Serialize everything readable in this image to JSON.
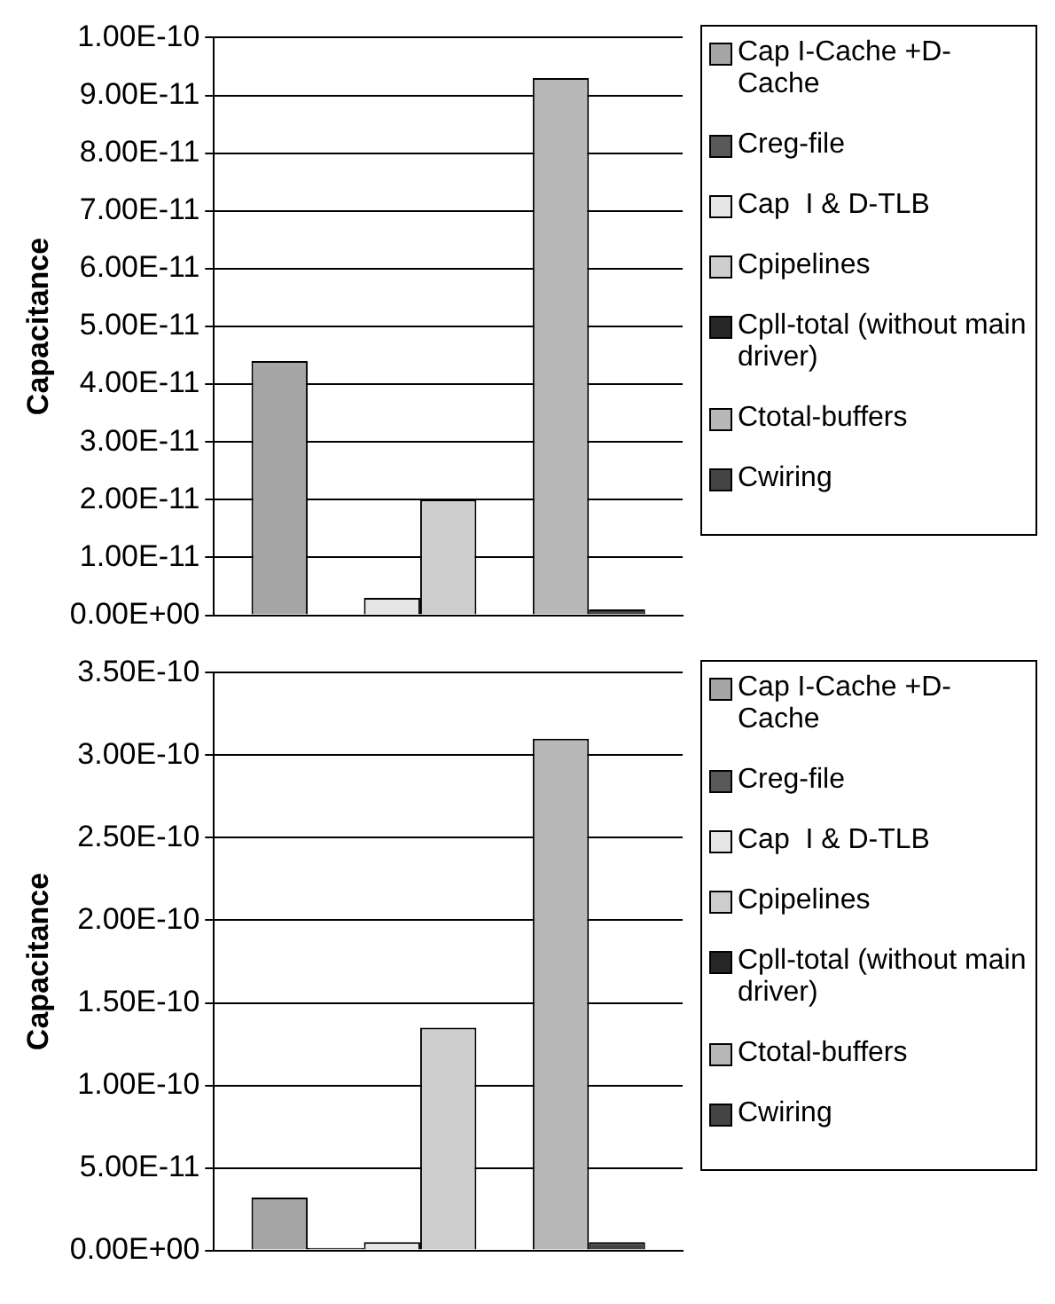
{
  "chart_data": [
    {
      "type": "bar",
      "ylabel": "Capacitance",
      "categories": [
        null
      ],
      "ylim": [
        0,
        1e-10
      ],
      "yticks": [
        {
          "value": 0,
          "label": "0.00E+00"
        },
        {
          "value": 1e-11,
          "label": "1.00E-11"
        },
        {
          "value": 2e-11,
          "label": "2.00E-11"
        },
        {
          "value": 3e-11,
          "label": "3.00E-11"
        },
        {
          "value": 4e-11,
          "label": "4.00E-11"
        },
        {
          "value": 5e-11,
          "label": "5.00E-11"
        },
        {
          "value": 6e-11,
          "label": "6.00E-11"
        },
        {
          "value": 7e-11,
          "label": "7.00E-11"
        },
        {
          "value": 8e-11,
          "label": "8.00E-11"
        },
        {
          "value": 9e-11,
          "label": "9.00E-11"
        },
        {
          "value": 1e-10,
          "label": "1.00E-10"
        }
      ],
      "grid": "y",
      "legend": "right",
      "series": [
        {
          "name": "Cap I-Cache +D-Cache",
          "color": "#a6a6a6",
          "values": [
            4.4e-11
          ]
        },
        {
          "name": "Creg-file",
          "color": "#595959",
          "values": [
            null
          ]
        },
        {
          "name": "Cap  I & D-TLB",
          "color": "#e6e6e6",
          "values": [
            3e-12
          ]
        },
        {
          "name": "Cpipelines",
          "color": "#cecece",
          "values": [
            2e-11
          ]
        },
        {
          "name": "Cpll-total (without main driver)",
          "color": "#262626",
          "values": [
            null
          ]
        },
        {
          "name": "Ctotal-buffers",
          "color": "#b8b8b8",
          "values": [
            9.3e-11
          ]
        },
        {
          "name": "Cwiring",
          "color": "#444444",
          "values": [
            1e-12
          ]
        }
      ]
    },
    {
      "type": "bar",
      "ylabel": "Capacitance",
      "categories": [
        null
      ],
      "ylim": [
        0,
        3.5e-10
      ],
      "yticks": [
        {
          "value": 0,
          "label": "0.00E+00"
        },
        {
          "value": 5e-11,
          "label": "5.00E-11"
        },
        {
          "value": 1e-10,
          "label": "1.00E-10"
        },
        {
          "value": 1.5e-10,
          "label": "1.50E-10"
        },
        {
          "value": 2e-10,
          "label": "2.00E-10"
        },
        {
          "value": 2.5e-10,
          "label": "2.50E-10"
        },
        {
          "value": 3e-10,
          "label": "3.00E-10"
        },
        {
          "value": 3.5e-10,
          "label": "3.50E-10"
        }
      ],
      "grid": "y",
      "legend": "right",
      "series": [
        {
          "name": "Cap I-Cache +D-Cache",
          "color": "#a6a6a6",
          "values": [
            3.2e-11
          ]
        },
        {
          "name": "Creg-file",
          "color": "#595959",
          "values": [
            1.5e-12
          ]
        },
        {
          "name": "Cap  I & D-TLB",
          "color": "#e6e6e6",
          "values": [
            5e-12
          ]
        },
        {
          "name": "Cpipelines",
          "color": "#cecece",
          "values": [
            1.35e-10
          ]
        },
        {
          "name": "Cpll-total (without main driver)",
          "color": "#262626",
          "values": [
            null
          ]
        },
        {
          "name": "Ctotal-buffers",
          "color": "#b8b8b8",
          "values": [
            3.1e-10
          ]
        },
        {
          "name": "Cwiring",
          "color": "#444444",
          "values": [
            5e-12
          ]
        }
      ]
    }
  ]
}
